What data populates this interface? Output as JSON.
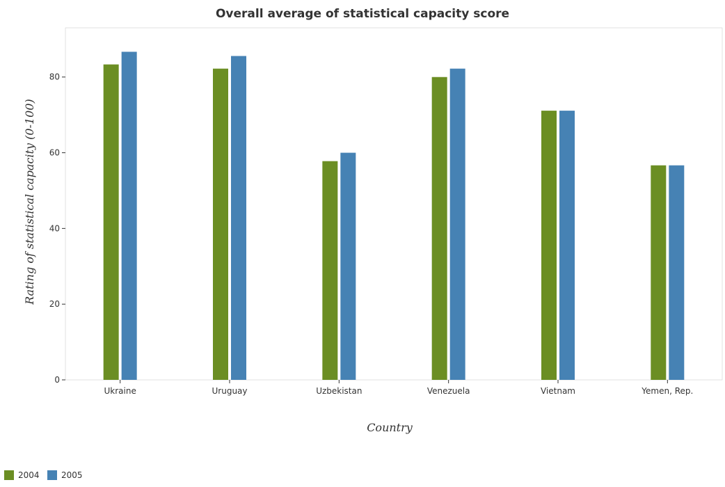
{
  "chart_data": {
    "type": "bar",
    "title": "Overall average of statistical capacity score",
    "xlabel": "Country",
    "ylabel": "Rating of statistical capacity (0-100)",
    "categories": [
      "Ukraine",
      "Uruguay",
      "Uzbekistan",
      "Venezuela",
      "Vietnam",
      "Yemen, Rep."
    ],
    "series": [
      {
        "name": "2004",
        "color": "#6b8e23",
        "values": [
          83.33,
          82.22,
          57.78,
          80.0,
          71.11,
          56.67
        ]
      },
      {
        "name": "2005",
        "color": "#4682b4",
        "values": [
          86.67,
          85.56,
          60.0,
          82.22,
          71.11,
          56.67
        ]
      }
    ],
    "ylim": [
      0,
      93
    ],
    "yticks": [
      0,
      20,
      40,
      60,
      80
    ],
    "legend_position": "bottom-left",
    "grid": false
  }
}
